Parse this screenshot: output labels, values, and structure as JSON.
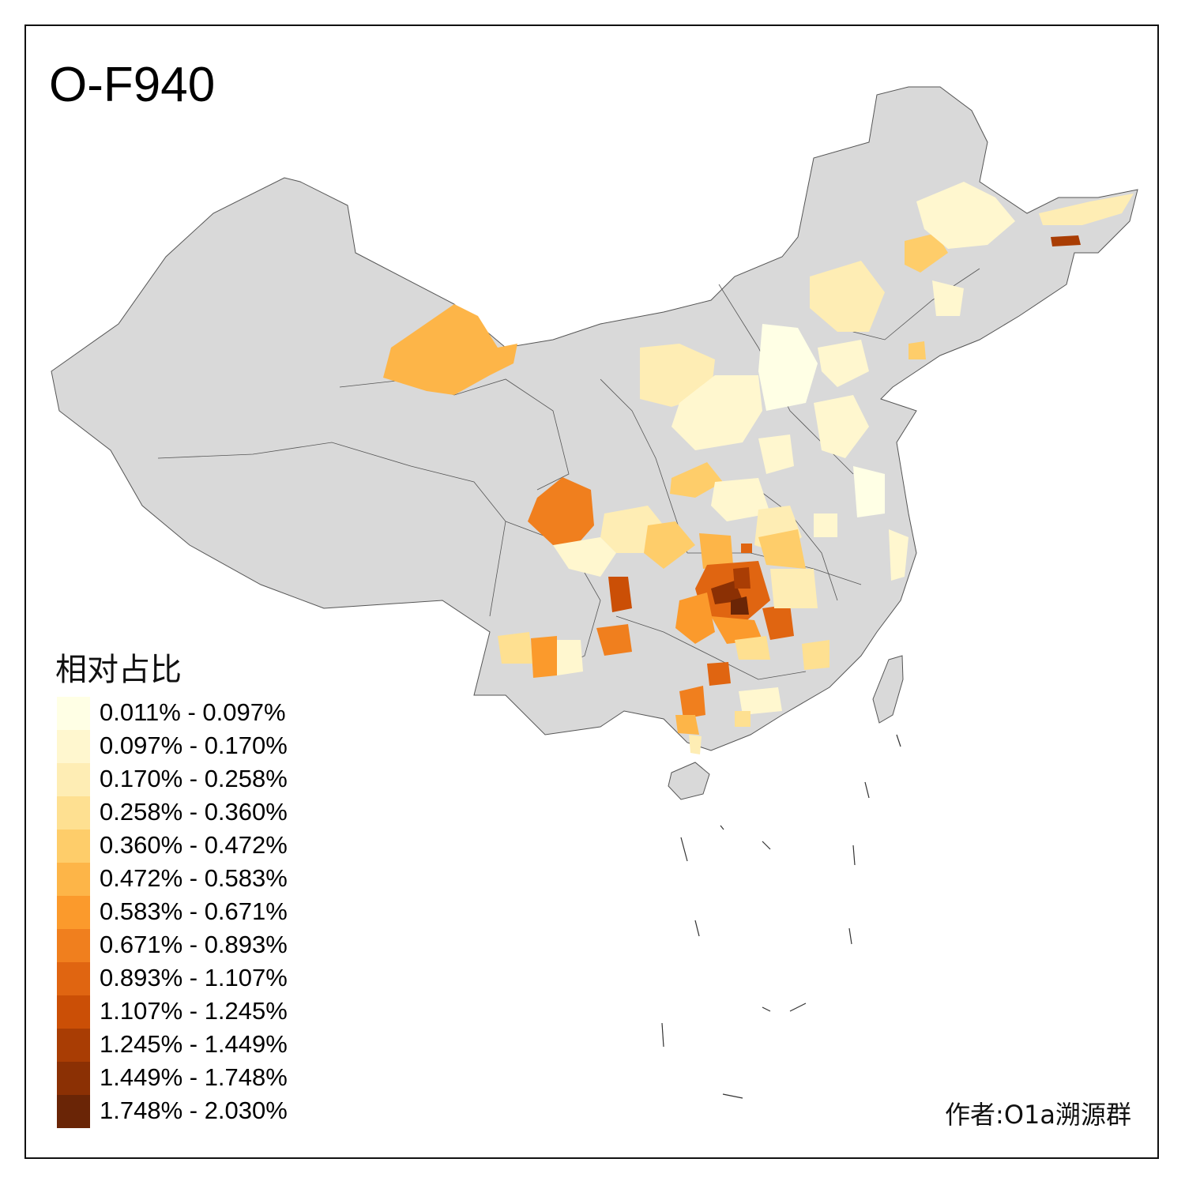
{
  "title": "O-F940",
  "legend": {
    "title": "相对占比",
    "items": [
      {
        "label": "0.011% - 0.097%",
        "color": "#FFFFE5"
      },
      {
        "label": "0.097% - 0.170%",
        "color": "#FFF7CF"
      },
      {
        "label": "0.170% - 0.258%",
        "color": "#FEEDB4"
      },
      {
        "label": "0.258% - 0.360%",
        "color": "#FEE091"
      },
      {
        "label": "0.360% - 0.472%",
        "color": "#FECD6A"
      },
      {
        "label": "0.472% - 0.583%",
        "color": "#FDB548"
      },
      {
        "label": "0.583% - 0.671%",
        "color": "#FB9A2C"
      },
      {
        "label": "0.671% - 0.893%",
        "color": "#F07F1E"
      },
      {
        "label": "0.893% - 1.107%",
        "color": "#E06511"
      },
      {
        "label": "1.107% - 1.245%",
        "color": "#CB4F06"
      },
      {
        "label": "1.245% - 1.449%",
        "color": "#A93D04"
      },
      {
        "label": "1.449% - 1.748%",
        "color": "#8B3004"
      },
      {
        "label": "1.748% - 2.030%",
        "color": "#6A2506"
      }
    ]
  },
  "credit": "作者:O1a溯源群",
  "colors": {
    "no_data": "#D9D9D9",
    "border": "#555555"
  }
}
